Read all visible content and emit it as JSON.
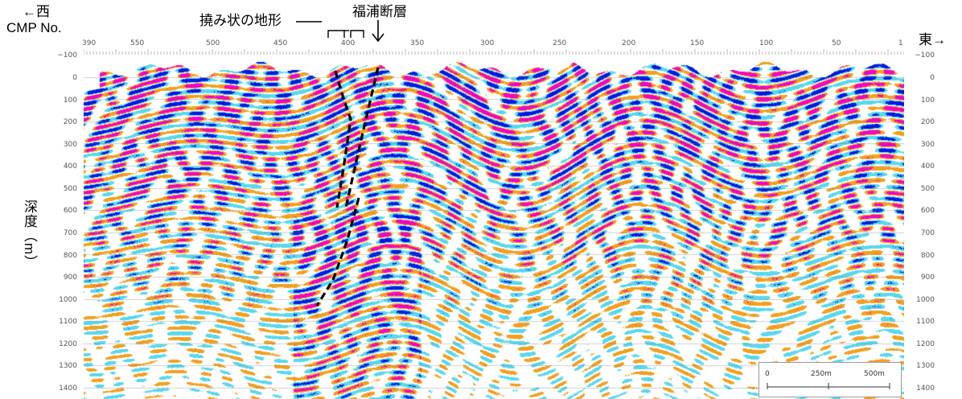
{
  "header": {
    "west": "←西",
    "east": "東→",
    "cmp_label": "CMP No.",
    "flexure": "撓み状の地形",
    "fault": "福浦断層"
  },
  "y_axis_label": "深度（m）",
  "cmp_ticks": [
    "390",
    "550",
    "500",
    "450",
    "400",
    "350",
    "300",
    "250",
    "200",
    "150",
    "100",
    "50",
    "1"
  ],
  "depth_ticks": [
    "−100",
    "0",
    "100",
    "200",
    "300",
    "400",
    "500",
    "600",
    "700",
    "800",
    "900",
    "1000",
    "1100",
    "1200",
    "1300",
    "1400"
  ],
  "scale_bar": {
    "labels": [
      "0",
      "250m",
      "500m"
    ]
  },
  "colors": {
    "peak": "#f000c8",
    "trough": "#0018e0",
    "pos_weak": "#f2a020",
    "neg_weak": "#58d8ee",
    "fault_line": "#000000"
  }
}
